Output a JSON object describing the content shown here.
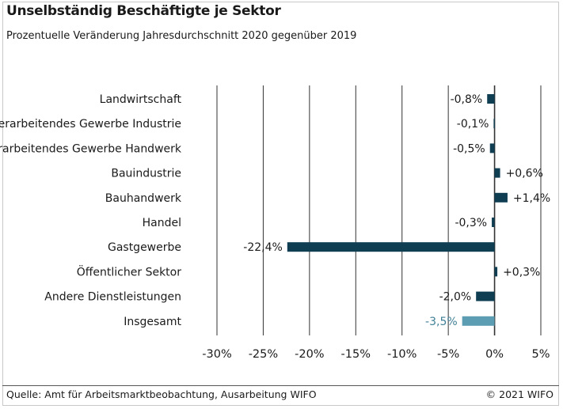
{
  "header": {
    "title": "Unselbständig Beschäftigte je Sektor",
    "subtitle": "Prozentuelle Veränderung Jahresdurchschnitt 2020 gegenüber 2019"
  },
  "footer": {
    "source": "Quelle: Amt für Arbeitsmarktbeobachtung, Ausarbeitung WIFO",
    "copyright": "© 2021 WIFO"
  },
  "colors": {
    "bar": "#0f3d52",
    "highlight": "#5d9db3",
    "grid": "#333333"
  },
  "chart_data": {
    "type": "bar",
    "orientation": "horizontal",
    "xlim": [
      -30,
      5
    ],
    "xticks": [
      -30,
      -25,
      -20,
      -15,
      -10,
      -5,
      0,
      5
    ],
    "xtick_labels": [
      "-30%",
      "-25%",
      "-20%",
      "-15%",
      "-10%",
      "-5%",
      "0%",
      "5%"
    ],
    "grid": true,
    "categories": [
      "Landwirtschaft",
      "Verarbeitendes Gewerbe Industrie",
      "Verarbeitendes Gewerbe Handwerk",
      "Bauindustrie",
      "Bauhandwerk",
      "Handel",
      "Gastgewerbe",
      "Öffentlicher Sektor",
      "Andere Dienstleistungen",
      "Insgesamt"
    ],
    "values": [
      -0.8,
      -0.1,
      -0.5,
      0.6,
      1.4,
      -0.3,
      -22.4,
      0.3,
      -2.0,
      -3.5
    ],
    "value_labels": [
      "-0,8%",
      "-0,1%",
      "-0,5%",
      "+0,6%",
      "+1,4%",
      "-0,3%",
      "-22,4%",
      "+0,3%",
      "-2,0%",
      "-3,5%"
    ],
    "highlight": [
      "Insgesamt"
    ]
  }
}
